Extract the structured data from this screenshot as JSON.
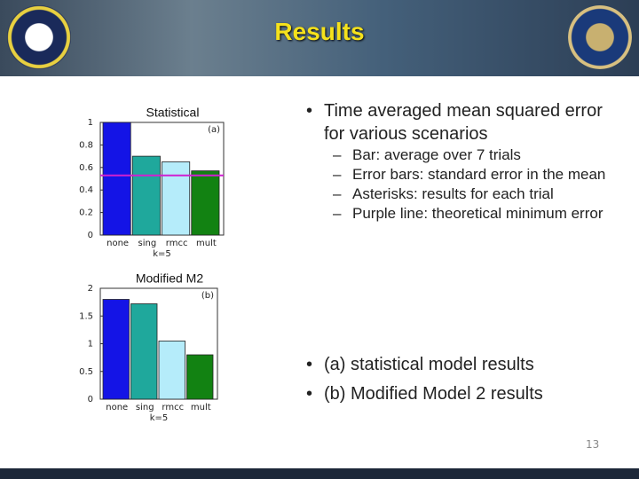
{
  "slide": {
    "title": "Results",
    "bullets": [
      {
        "text": "Time averaged mean squared error for various scenarios",
        "sub": [
          "Bar: average over 7 trials",
          "Error bars: standard error in the mean",
          "Asterisks: results for each trial",
          "Purple line: theoretical minimum error"
        ]
      },
      {
        "text": "(a) statistical model results",
        "sub": []
      },
      {
        "text": "(b) Modified Model 2 results",
        "sub": []
      }
    ],
    "page_number": "13"
  },
  "chart_data": [
    {
      "type": "bar",
      "title": "Statistical",
      "panel_label": "(a)",
      "x_label": "k=5",
      "categories": [
        "none",
        "sing",
        "rmcc",
        "mult"
      ],
      "values": [
        1.0,
        0.7,
        0.65,
        0.57
      ],
      "colors": [
        "#1414e6",
        "#1fa89c",
        "#b5ecfa",
        "#128212"
      ],
      "min_error": 0.53,
      "min_error_color": "#d020d0",
      "ylim": [
        0,
        1
      ],
      "yticks": [
        0,
        0.2,
        0.4,
        0.6,
        0.8,
        1
      ]
    },
    {
      "type": "bar",
      "title": "Modified M2",
      "panel_label": "(b)",
      "x_label": "k=5",
      "categories": [
        "none",
        "sing",
        "rmcc",
        "mult"
      ],
      "values": [
        1.8,
        1.72,
        1.05,
        0.8
      ],
      "colors": [
        "#1414e6",
        "#1fa89c",
        "#b5ecfa",
        "#128212"
      ],
      "ylim": [
        0,
        2
      ],
      "yticks": [
        0,
        0.5,
        1,
        1.5,
        2
      ]
    }
  ]
}
